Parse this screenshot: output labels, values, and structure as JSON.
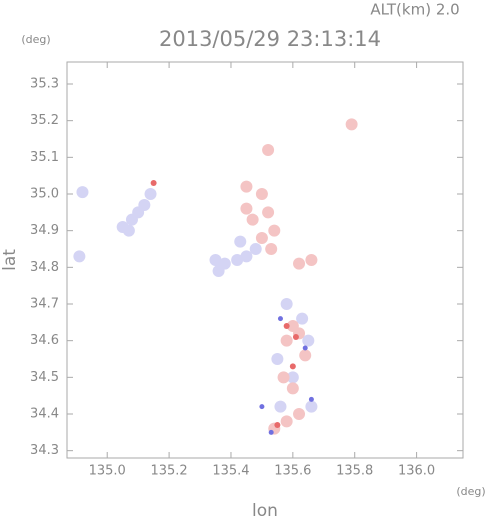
{
  "chart_data": {
    "type": "scatter",
    "title": "2013/05/29 23:13:14",
    "annotation": "ALT(km) 2.0",
    "y_unit": "(deg)",
    "x_unit": "(deg)",
    "x_label": "lon",
    "y_label": "lat",
    "xlim": [
      134.87,
      136.15
    ],
    "ylim": [
      34.28,
      35.36
    ],
    "xticks": [
      {
        "value": 135.0,
        "label": "135.0"
      },
      135.2,
      135.4,
      135.6,
      135.8,
      {
        "value": 136.0,
        "label": "136.0"
      }
    ],
    "yticks": [
      35.3,
      35.2,
      35.1,
      {
        "value": 35.0,
        "label": "35.0"
      },
      34.9,
      34.8,
      34.7,
      34.6,
      34.5,
      34.4,
      34.3
    ],
    "series": [
      {
        "color": "#d4d4f4",
        "x": [
          134.91,
          134.92,
          135.05,
          135.08,
          135.1,
          135.12,
          135.14,
          135.07,
          135.35,
          135.38,
          135.42,
          135.45,
          135.48,
          135.36,
          135.43,
          135.55,
          135.6,
          135.65,
          135.56,
          135.66,
          135.63,
          135.58
        ],
        "y": [
          34.83,
          35.005,
          34.91,
          34.93,
          34.95,
          34.97,
          35.0,
          34.9,
          34.82,
          34.81,
          34.82,
          34.83,
          34.85,
          34.79,
          34.87,
          34.55,
          34.5,
          34.6,
          34.42,
          34.42,
          34.66,
          34.7
        ]
      },
      {
        "color": "#f4c4c4",
        "x": [
          135.79,
          135.52,
          135.5,
          135.45,
          135.47,
          135.52,
          135.54,
          135.5,
          135.53,
          135.45,
          135.62,
          135.66,
          135.6,
          135.62,
          135.58,
          135.64,
          135.57,
          135.6,
          135.58,
          135.54,
          135.62
        ],
        "y": [
          35.19,
          35.12,
          35.0,
          34.96,
          34.93,
          34.95,
          34.9,
          34.88,
          34.85,
          35.02,
          34.81,
          34.82,
          34.64,
          34.62,
          34.6,
          34.56,
          34.5,
          34.47,
          34.38,
          34.36,
          34.4
        ]
      },
      {
        "color": "#e86a6a",
        "x": [
          135.15,
          135.58,
          135.61,
          135.55,
          135.6
        ],
        "y": [
          35.03,
          34.64,
          34.61,
          34.37,
          34.53
        ]
      },
      {
        "color": "#7070e0",
        "x": [
          135.5,
          135.56,
          135.64,
          135.66,
          135.53
        ],
        "y": [
          34.42,
          34.66,
          34.58,
          34.44,
          34.35
        ]
      }
    ]
  }
}
